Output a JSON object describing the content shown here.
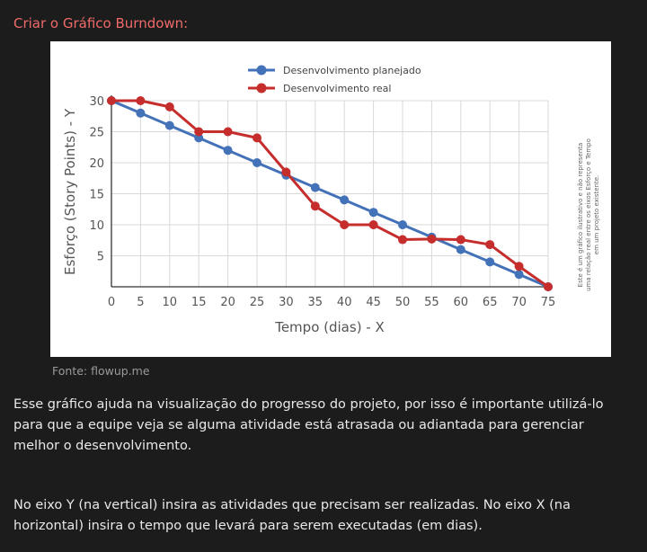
{
  "heading": "Criar o Gráfico Burndown:",
  "source": "Fonte: flowup.me",
  "paragraphs": [
    "Esse gráfico ajuda na visualização do progresso do projeto, por isso é importante utilizá-lo para que a equipe veja se alguma atividade está atrasada ou adiantada para gerenciar melhor o desenvolvimento.",
    "No eixo Y (na vertical) insira as atividades que precisam ser realizadas. No eixo X (na horizontal) insira o tempo que levará para serem executadas (em dias)."
  ],
  "chart_data": {
    "type": "line",
    "title": "",
    "xlabel": "Tempo (dias) - X",
    "ylabel": "Esforço (Story Points) - Y",
    "x": [
      0,
      5,
      10,
      15,
      20,
      25,
      30,
      35,
      40,
      45,
      50,
      55,
      60,
      65,
      70,
      75
    ],
    "x_ticks": [
      "0",
      "5",
      "10",
      "15",
      "20",
      "25",
      "30",
      "35",
      "40",
      "45",
      "50",
      "55",
      "60",
      "65",
      "70",
      "75"
    ],
    "y_ticks": [
      "5",
      "10",
      "15",
      "20",
      "25",
      "30"
    ],
    "xlim": [
      0,
      75
    ],
    "ylim": [
      0,
      30
    ],
    "grid": true,
    "legend_position": "top",
    "series": [
      {
        "name": "Desenvolvimento planejado",
        "color": "#4472b8",
        "x": [
          0,
          5,
          10,
          15,
          20,
          25,
          30,
          35,
          40,
          45,
          50,
          55,
          60,
          65,
          70,
          75
        ],
        "values": [
          30,
          28,
          26,
          24,
          22,
          20,
          18,
          16,
          14,
          12,
          10,
          8,
          6,
          4,
          2,
          0
        ]
      },
      {
        "name": "Desenvolvimento real",
        "color": "#c62d2d",
        "x": [
          0,
          5,
          10,
          15,
          20,
          25,
          30,
          35,
          40,
          45,
          50,
          55,
          60,
          65,
          70,
          75
        ],
        "values": [
          30,
          30,
          29,
          25,
          25,
          24,
          18.5,
          13,
          10,
          10,
          7.6,
          7.7,
          7.6,
          6.8,
          3.3,
          0
        ]
      }
    ],
    "side_note": [
      "Este é um gráfico ilustrativo e não representa",
      "uma relação real entre os eixos Esforço e Tempo",
      "em um projeto existente."
    ]
  }
}
